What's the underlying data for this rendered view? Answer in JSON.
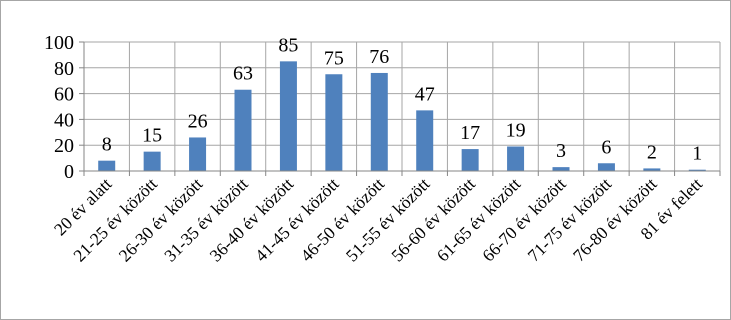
{
  "chart_data": {
    "type": "bar",
    "categories": [
      "20 év alatt",
      "21-25 év között",
      "26-30 év között",
      "31-35 év között",
      "36-40 év között",
      "41-45 év között",
      "46-50 év között",
      "51-55 év között",
      "56-60 év között",
      "61-65 év között",
      "66-70 év között",
      "71-75 év között",
      "76-80 év között",
      "81 év felett"
    ],
    "values": [
      8,
      15,
      26,
      63,
      85,
      75,
      76,
      47,
      17,
      19,
      3,
      6,
      2,
      1
    ],
    "ylim": [
      0,
      100
    ],
    "yticks": [
      0,
      20,
      40,
      60,
      80,
      100
    ],
    "grid": true,
    "legend": "none",
    "bar_color": "#4f81bd",
    "title": "",
    "xlabel": "",
    "ylabel": ""
  }
}
